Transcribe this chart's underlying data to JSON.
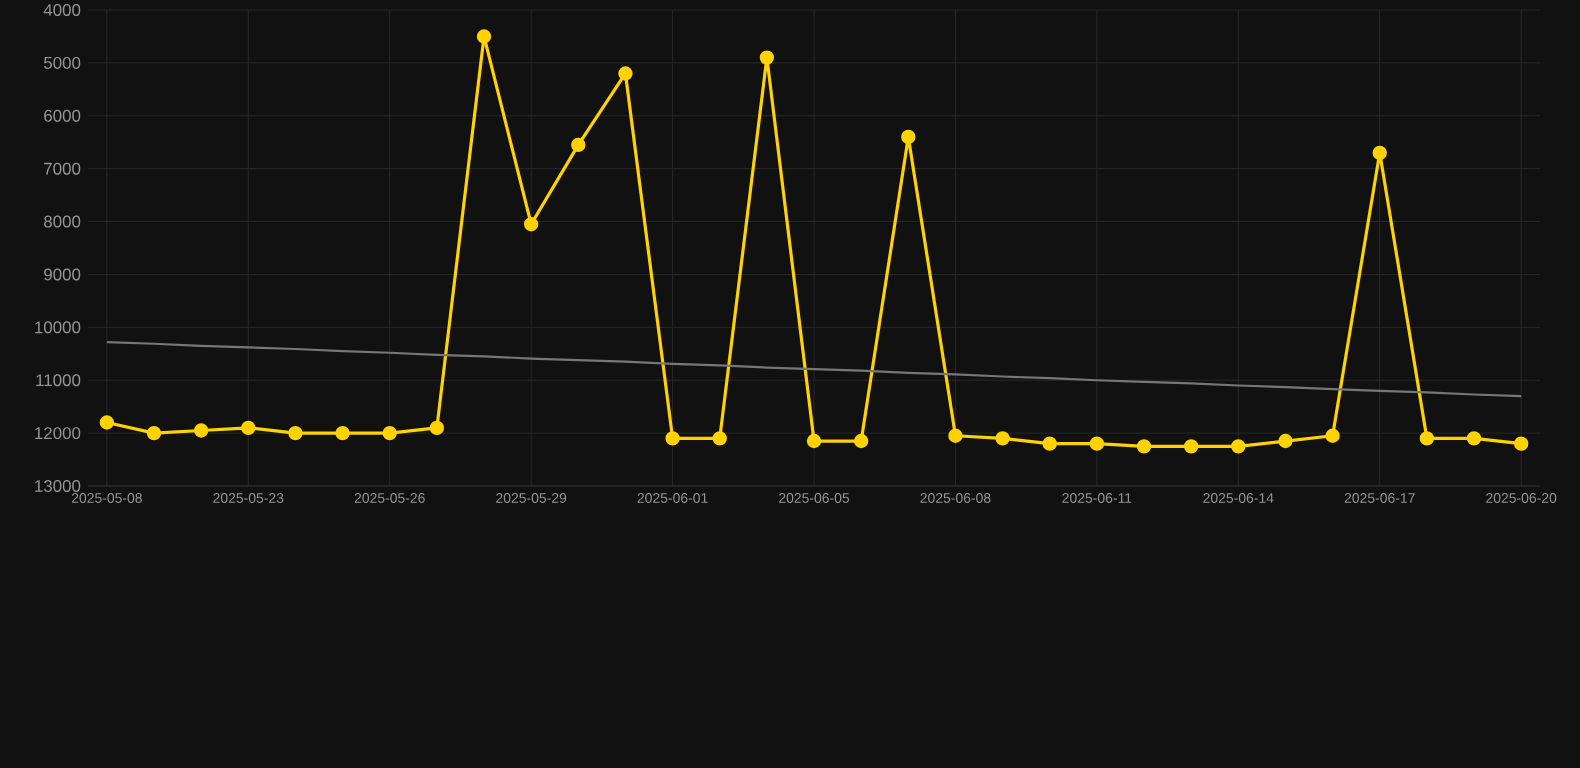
{
  "chart_data": {
    "type": "line",
    "categories": [
      "2025-05-08",
      null,
      null,
      "2025-05-23",
      null,
      null,
      "2025-05-26",
      null,
      null,
      "2025-05-29",
      null,
      null,
      "2025-06-01",
      null,
      null,
      "2025-06-05",
      null,
      null,
      "2025-06-08",
      null,
      null,
      "2025-06-11",
      null,
      null,
      "2025-06-14",
      null,
      null,
      "2025-06-17",
      null,
      null,
      "2025-06-20"
    ],
    "series": [
      {
        "color": "#ffd200",
        "values": [
          11800,
          12000,
          11950,
          11900,
          12000,
          12000,
          12000,
          11900,
          4500,
          8050,
          6550,
          5200,
          12100,
          12100,
          4900,
          12150,
          12150,
          6400,
          12050,
          12100,
          12200,
          12200,
          12250,
          12250,
          12250,
          12150,
          12050,
          6700,
          12100,
          12100,
          12200
        ]
      },
      {
        "type": "line",
        "color": "#777777",
        "marker": "none",
        "values": [
          10280,
          10310,
          10350,
          10380,
          10410,
          10450,
          10480,
          10520,
          10550,
          10590,
          10620,
          10650,
          10690,
          10720,
          10760,
          10790,
          10820,
          10860,
          10890,
          10930,
          10960,
          11000,
          11030,
          11060,
          11100,
          11130,
          11170,
          11200,
          11230,
          11270,
          11300
        ]
      }
    ],
    "ylim": [
      13000,
      4000
    ],
    "yticks": [
      4000,
      5000,
      6000,
      7000,
      8000,
      9000,
      10000,
      11000,
      12000,
      13000
    ],
    "grid": true,
    "marker": "circle",
    "line_style": "solid"
  }
}
